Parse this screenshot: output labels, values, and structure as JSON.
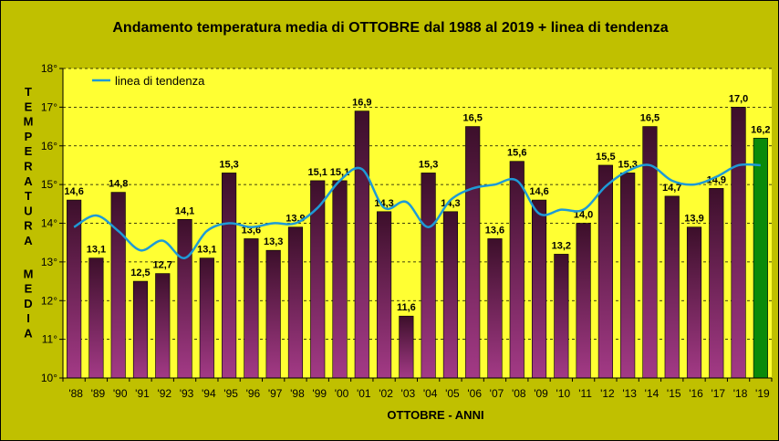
{
  "chart_data": {
    "type": "bar",
    "title": "Andamento temperatura media di OTTOBRE dal 1988 al 2019 + linea di tendenza",
    "xlabel": "OTTOBRE - ANNI",
    "ylabel": "TEMPERATURA MEDIA",
    "ylim": [
      10,
      18
    ],
    "yticks": [
      "10°",
      "11°",
      "12°",
      "13°",
      "14°",
      "15°",
      "16°",
      "17°",
      "18°"
    ],
    "categories": [
      "'88",
      "'89",
      "'90",
      "'91",
      "'92",
      "'93",
      "'94",
      "'95",
      "'96",
      "'97",
      "'98",
      "'99",
      "'00",
      "'01",
      "'02",
      "'03",
      "'04",
      "'05",
      "'06",
      "'07",
      "'08",
      "'09",
      "'10",
      "'11",
      "'12",
      "'13",
      "'14",
      "'15",
      "'16",
      "'17",
      "'18",
      "'19"
    ],
    "values": [
      14.6,
      13.1,
      14.8,
      12.5,
      12.7,
      14.1,
      13.1,
      15.3,
      13.6,
      13.3,
      13.9,
      15.1,
      15.1,
      16.9,
      14.3,
      11.6,
      15.3,
      14.3,
      16.5,
      13.6,
      15.6,
      14.6,
      13.2,
      14.0,
      15.5,
      15.3,
      16.5,
      14.7,
      13.9,
      14.9,
      17.0,
      16.2
    ],
    "data_labels": [
      "14,6",
      "13,1",
      "14,8",
      "12,5",
      "12,7",
      "14,1",
      "13,1",
      "15,3",
      "13,6",
      "13,3",
      "13,9",
      "15,1",
      "15,1",
      "16,9",
      "14,3",
      "11,6",
      "15,3",
      "14,3",
      "16,5",
      "13,6",
      "15,6",
      "14,6",
      "13,2",
      "14,0",
      "15,5",
      "15,3",
      "16,5",
      "14,7",
      "13,9",
      "14,9",
      "17,0",
      "16,2"
    ],
    "series_trend": {
      "name": "linea di tendenza",
      "values": [
        13.9,
        14.2,
        13.8,
        13.3,
        13.55,
        13.1,
        13.8,
        14.0,
        13.9,
        14.0,
        14.0,
        14.4,
        15.1,
        15.4,
        14.4,
        14.55,
        13.9,
        14.6,
        14.9,
        15.0,
        15.1,
        14.25,
        14.35,
        14.35,
        14.95,
        15.35,
        15.5,
        15.1,
        15.0,
        15.2,
        15.5,
        15.5
      ]
    },
    "legend": "top-left",
    "grid": true,
    "colors": {
      "frame": "#c0c000",
      "plot_bg": "#ffff33",
      "bar_top": "#3c0f2a",
      "bar_bottom": "#a33a86",
      "highlight": "#0a8a0a",
      "trend": "#1e9ad6"
    }
  }
}
